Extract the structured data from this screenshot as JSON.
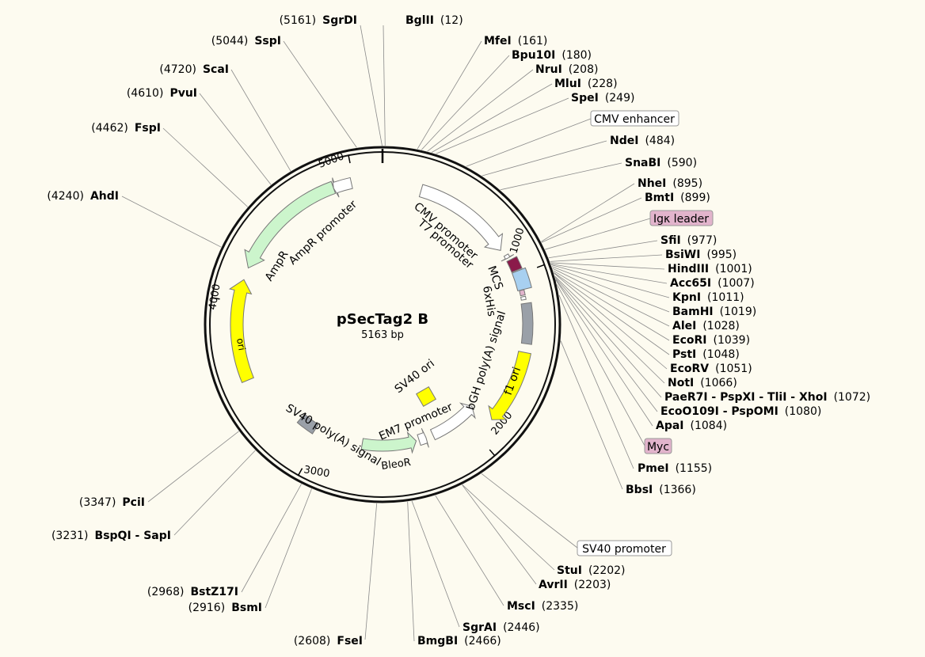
{
  "plasmid": {
    "name": "pSecTag2 B",
    "length_label": "5163 bp",
    "total_bp": 5163
  },
  "ticks": [
    {
      "bp": 1000,
      "label": "1000"
    },
    {
      "bp": 2000,
      "label": "2000"
    },
    {
      "bp": 3000,
      "label": "3000"
    },
    {
      "bp": 4000,
      "label": "4000"
    },
    {
      "bp": 5000,
      "label": "5000"
    }
  ],
  "sites": [
    {
      "name": "SgrDI",
      "pos": "(5161)",
      "bp": 5161,
      "side": "left"
    },
    {
      "name": "BglII",
      "pos": "(12)",
      "bp": 12,
      "side": "right"
    },
    {
      "name": "MfeI",
      "pos": "(161)",
      "bp": 161,
      "side": "right"
    },
    {
      "name": "Bpu10I",
      "pos": "(180)",
      "bp": 180,
      "side": "right"
    },
    {
      "name": "NruI",
      "pos": "(208)",
      "bp": 208,
      "side": "right"
    },
    {
      "name": "MluI",
      "pos": "(228)",
      "bp": 228,
      "side": "right"
    },
    {
      "name": "SpeI",
      "pos": "(249)",
      "bp": 249,
      "side": "right"
    },
    {
      "name": "NdeI",
      "pos": "(484)",
      "bp": 484,
      "side": "right"
    },
    {
      "name": "SnaBI",
      "pos": "(590)",
      "bp": 590,
      "side": "right"
    },
    {
      "name": "NheI",
      "pos": "(895)",
      "bp": 895,
      "side": "right"
    },
    {
      "name": "BmtI",
      "pos": "(899)",
      "bp": 899,
      "side": "right"
    },
    {
      "name": "SfiI",
      "pos": "(977)",
      "bp": 977,
      "side": "right"
    },
    {
      "name": "BsiWI",
      "pos": "(995)",
      "bp": 995,
      "side": "right"
    },
    {
      "name": "HindIII",
      "pos": "(1001)",
      "bp": 1001,
      "side": "right"
    },
    {
      "name": "Acc65I",
      "pos": "(1007)",
      "bp": 1007,
      "side": "right"
    },
    {
      "name": "KpnI",
      "pos": "(1011)",
      "bp": 1011,
      "side": "right"
    },
    {
      "name": "BamHI",
      "pos": "(1019)",
      "bp": 1019,
      "side": "right"
    },
    {
      "name": "AleI",
      "pos": "(1028)",
      "bp": 1028,
      "side": "right"
    },
    {
      "name": "EcoRI",
      "pos": "(1039)",
      "bp": 1039,
      "side": "right"
    },
    {
      "name": "PstI",
      "pos": "(1048)",
      "bp": 1048,
      "side": "right"
    },
    {
      "name": "EcoRV",
      "pos": "(1051)",
      "bp": 1051,
      "side": "right"
    },
    {
      "name": "NotI",
      "pos": "(1066)",
      "bp": 1066,
      "side": "right"
    },
    {
      "name": "PaeR7I - PspXI - TliI - XhoI",
      "pos": "(1072)",
      "bp": 1072,
      "side": "right"
    },
    {
      "name": "EcoO109I - PspOMI",
      "pos": "(1080)",
      "bp": 1080,
      "side": "right"
    },
    {
      "name": "ApaI",
      "pos": "(1084)",
      "bp": 1084,
      "side": "right"
    },
    {
      "name": "PmeI",
      "pos": "(1155)",
      "bp": 1155,
      "side": "right"
    },
    {
      "name": "BbsI",
      "pos": "(1366)",
      "bp": 1366,
      "side": "right"
    },
    {
      "name": "StuI",
      "pos": "(2202)",
      "bp": 2202,
      "side": "right"
    },
    {
      "name": "AvrII",
      "pos": "(2203)",
      "bp": 2203,
      "side": "right"
    },
    {
      "name": "MscI",
      "pos": "(2335)",
      "bp": 2335,
      "side": "right"
    },
    {
      "name": "SgrAI",
      "pos": "(2446)",
      "bp": 2446,
      "side": "right"
    },
    {
      "name": "BmgBI",
      "pos": "(2466)",
      "bp": 2466,
      "side": "right"
    },
    {
      "name": "FseI",
      "pos": "(2608)",
      "bp": 2608,
      "side": "left"
    },
    {
      "name": "BsmI",
      "pos": "(2916)",
      "bp": 2916,
      "side": "left"
    },
    {
      "name": "BstZ17I",
      "pos": "(2968)",
      "bp": 2968,
      "side": "left"
    },
    {
      "name": "BspQI - SapI",
      "pos": "(3231)",
      "bp": 3231,
      "side": "left"
    },
    {
      "name": "PciI",
      "pos": "(3347)",
      "bp": 3347,
      "side": "left"
    },
    {
      "name": "AhdI",
      "pos": "(4240)",
      "bp": 4240,
      "side": "left"
    },
    {
      "name": "FspI",
      "pos": "(4462)",
      "bp": 4462,
      "side": "left"
    },
    {
      "name": "PvuI",
      "pos": "(4610)",
      "bp": 4610,
      "side": "left"
    },
    {
      "name": "ScaI",
      "pos": "(4720)",
      "bp": 4720,
      "side": "left"
    },
    {
      "name": "SspI",
      "pos": "(5044)",
      "bp": 5044,
      "side": "left"
    }
  ],
  "boxed_features": [
    {
      "name": "CMV enhancer",
      "bp": 400,
      "fill": "#ffffff"
    },
    {
      "name": "Igκ leader",
      "bp": 935,
      "fill": "#e2b4cc"
    },
    {
      "name": "Myc",
      "bp": 1105,
      "fill": "#e2b4cc"
    },
    {
      "name": "SV40 promoter",
      "bp": 2100,
      "fill": "#ffffff"
    }
  ],
  "features": [
    {
      "name": "CMV promoter",
      "start": 230,
      "end": 830,
      "fill": "#ffffff"
    },
    {
      "name": "T7 promoter",
      "start": 870,
      "end": 890,
      "fill": "#ffffff"
    },
    {
      "name": "Igκ leader",
      "start": 905,
      "end": 975,
      "fill": "#8b1a4a"
    },
    {
      "name": "MCS",
      "start": 980,
      "end": 1090,
      "fill": "#a8d0f0"
    },
    {
      "name": "Myc",
      "start": 1092,
      "end": 1122,
      "fill": "#e2b4cc"
    },
    {
      "name": "6xHis",
      "start": 1130,
      "end": 1148,
      "fill": "#ffffff"
    },
    {
      "name": "bGH poly(A) signal",
      "start": 1170,
      "end": 1400,
      "fill": "#9aa0a8"
    },
    {
      "name": "f1 ori",
      "start": 1450,
      "end": 1880,
      "fill": "#ffff00"
    },
    {
      "name": "SV40 promoter",
      "start": 1900,
      "end": 2230,
      "fill": "#ffffff"
    },
    {
      "name": "EM7 promoter",
      "start": 2280,
      "end": 2330,
      "fill": "#ffffff"
    },
    {
      "name": "BleoR",
      "start": 2350,
      "end": 2720,
      "fill": "#ccf5cc"
    },
    {
      "name": "SV40 poly(A) signal",
      "start": 3050,
      "end": 3170,
      "fill": "#9aa0a8"
    },
    {
      "name": "ori",
      "start": 3550,
      "end": 4130,
      "fill": "#ffff00"
    },
    {
      "name": "AmpR",
      "start": 4200,
      "end": 4880,
      "fill": "#ccf5cc"
    },
    {
      "name": "AmpR promoter",
      "start": 4880,
      "end": 4985,
      "fill": "#ffffff"
    },
    {
      "name": "SV40 ori",
      "fill": "#ffff00"
    }
  ],
  "feature_labels": {
    "cmv_promoter": "CMV promoter",
    "t7_promoter": "T7 promoter",
    "mcs": "MCS",
    "his": "6xHis",
    "bgh": "bGH poly(A) signal",
    "f1ori": "f1 ori",
    "sv40ori": "SV40 ori",
    "em7": "EM7 promoter",
    "bleor": "BleoR",
    "sv40pa": "SV40 poly(A) signal",
    "ori": "ori",
    "ampr": "AmpR",
    "ampr_promoter": "AmpR promoter"
  }
}
